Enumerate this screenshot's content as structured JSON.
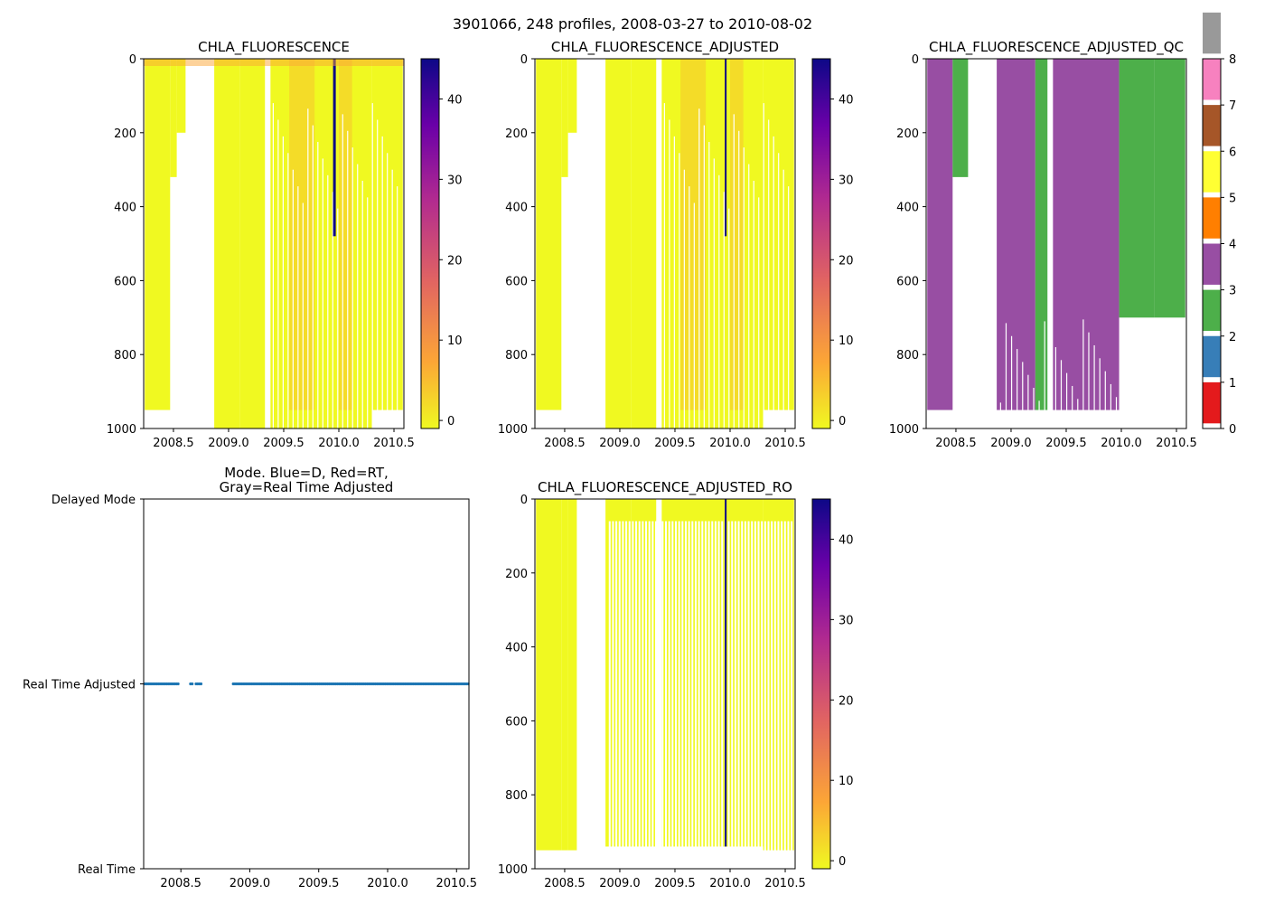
{
  "figure_title": "3901066, 248 profiles, 2008-03-27 to 2010-08-02",
  "colors": {
    "yellow": "#f0f921",
    "orange": "#fca636",
    "magenta": "#b12a90",
    "navy": "#0d0887",
    "mode_dots": "#1f77b4"
  },
  "chart_data": [
    {
      "id": "chla",
      "type": "heatmap",
      "title": "CHLA_FLUORESCENCE",
      "xlim": [
        2008.23,
        2010.59
      ],
      "ylim": [
        1000,
        0
      ],
      "xticks": [
        "2008.5",
        "2009.0",
        "2009.5",
        "2010.0",
        "2010.5"
      ],
      "yticks": [
        "0",
        "200",
        "400",
        "600",
        "800",
        "1000"
      ],
      "colorbar": {
        "cmap": "plasma_r",
        "range": [
          -1,
          45
        ],
        "ticks": [
          "0",
          "10",
          "20",
          "30",
          "40"
        ]
      },
      "profiles": [
        {
          "from": 2008.24,
          "to": 2008.47,
          "max_depth": 950
        },
        {
          "from": 2008.47,
          "to": 2008.53,
          "max_depth": 320
        },
        {
          "from": 2008.53,
          "to": 2008.61,
          "max_depth": 200
        },
        {
          "from": 2008.87,
          "to": 2009.1,
          "max_depth": 1000
        },
        {
          "from": 2009.1,
          "to": 2009.33,
          "max_depth": 1000
        },
        {
          "from": 2009.38,
          "to": 2009.98,
          "max_depth": 1000
        },
        {
          "from": 2009.98,
          "to": 2010.3,
          "max_depth": 1000
        },
        {
          "from": 2010.3,
          "to": 2010.58,
          "max_depth": 950
        }
      ],
      "high_value_stripes": [
        {
          "x": 2009.96,
          "depth_to": 480,
          "value": 45
        }
      ],
      "elevated_bands": [
        {
          "from": 2009.55,
          "to": 2009.78,
          "value": 4
        },
        {
          "from": 2010.0,
          "to": 2010.12,
          "value": 6
        }
      ]
    },
    {
      "id": "chla_adjusted",
      "type": "heatmap",
      "title": "CHLA_FLUORESCENCE_ADJUSTED",
      "xlim": [
        2008.23,
        2010.59
      ],
      "ylim": [
        1000,
        0
      ],
      "xticks": [
        "2008.5",
        "2009.0",
        "2009.5",
        "2010.0",
        "2010.5"
      ],
      "yticks": [
        "0",
        "200",
        "400",
        "600",
        "800",
        "1000"
      ],
      "colorbar": {
        "cmap": "plasma_r",
        "range": [
          -1,
          45
        ],
        "ticks": [
          "0",
          "10",
          "20",
          "30",
          "40"
        ]
      },
      "high_value_stripes": [
        {
          "x": 2009.96,
          "depth_to": 480,
          "value": 45
        }
      ]
    },
    {
      "id": "chla_adjusted_qc",
      "type": "heatmap",
      "title": "CHLA_FLUORESCENCE_ADJUSTED_QC",
      "xlim": [
        2008.23,
        2010.59
      ],
      "ylim": [
        1000,
        0
      ],
      "xticks": [
        "2008.5",
        "2009.0",
        "2009.5",
        "2010.0",
        "2010.5"
      ],
      "yticks": [
        "0",
        "200",
        "400",
        "600",
        "800",
        "1000"
      ],
      "colorbar": {
        "cmap": "qc_flags",
        "range": [
          0,
          8
        ],
        "ticks": [
          "0",
          "1",
          "2",
          "3",
          "4",
          "5",
          "6",
          "7",
          "8"
        ],
        "flag_colors": [
          "#e41a1c",
          "#377eb8",
          "#4daf4a",
          "#984ea3",
          "#ff7f00",
          "#ffff33",
          "#a65628",
          "#f781bf",
          "#999999"
        ]
      },
      "qc_segments": [
        {
          "from": 2008.24,
          "to": 2008.47,
          "flag": 3
        },
        {
          "from": 2008.47,
          "to": 2008.61,
          "flag": 2
        },
        {
          "from": 2008.87,
          "to": 2009.22,
          "flag": 3
        },
        {
          "from": 2009.22,
          "to": 2009.33,
          "flag": 2
        },
        {
          "from": 2009.38,
          "to": 2009.98,
          "flag": 3
        },
        {
          "from": 2009.98,
          "to": 2010.3,
          "flag": 2
        },
        {
          "from": 2010.3,
          "to": 2010.58,
          "flag": 2
        }
      ]
    },
    {
      "id": "mode",
      "type": "scatter",
      "title": "Mode. Blue=D, Red=RT,\nGray=Real Time Adjusted",
      "xlim": [
        2008.23,
        2010.59
      ],
      "xticks": [
        "2008.5",
        "2009.0",
        "2009.5",
        "2010.0",
        "2010.5"
      ],
      "y_categories": [
        "Real Time",
        "Real Time Adjusted",
        "Delayed Mode"
      ],
      "segments": [
        {
          "from": 2008.24,
          "to": 2008.49,
          "mode": "Real Time Adjusted"
        },
        {
          "from": 2008.57,
          "to": 2008.59,
          "mode": "Real Time Adjusted"
        },
        {
          "from": 2008.61,
          "to": 2008.65,
          "mode": "Real Time Adjusted"
        },
        {
          "from": 2008.88,
          "to": 2010.59,
          "mode": "Real Time Adjusted"
        }
      ]
    },
    {
      "id": "chla_adjusted_ro",
      "type": "heatmap",
      "title": "CHLA_FLUORESCENCE_ADJUSTED_RO",
      "xlim": [
        2008.23,
        2010.59
      ],
      "ylim": [
        1000,
        0
      ],
      "xticks": [
        "2008.5",
        "2009.0",
        "2009.5",
        "2010.0",
        "2010.5"
      ],
      "yticks": [
        "0",
        "200",
        "400",
        "600",
        "800",
        "1000"
      ],
      "colorbar": {
        "cmap": "plasma_r",
        "range": [
          -1,
          45
        ],
        "ticks": [
          "0",
          "10",
          "20",
          "30",
          "40"
        ]
      },
      "high_value_stripes": [
        {
          "x": 2009.96,
          "depth_to": 940,
          "value": 45
        }
      ]
    }
  ]
}
